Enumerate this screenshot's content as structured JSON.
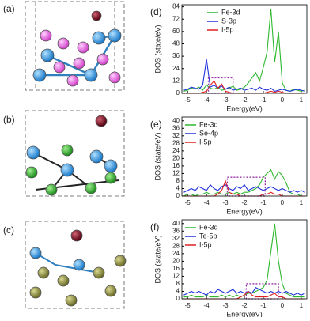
{
  "structures": [
    {
      "label": "(a)"
    },
    {
      "label": "(b)"
    },
    {
      "label": "(c)"
    }
  ],
  "chart_data": [
    {
      "type": "line",
      "label": "(d)",
      "x_label": "Energy(eV)",
      "y_label": "DOS (state/eV)",
      "x": [
        -5.2,
        -5.0,
        -4.8,
        -4.6,
        -4.4,
        -4.2,
        -4.0,
        -3.8,
        -3.6,
        -3.4,
        -3.2,
        -3.0,
        -2.8,
        -2.6,
        -2.4,
        -2.2,
        -2.0,
        -1.8,
        -1.6,
        -1.4,
        -1.2,
        -1.0,
        -0.8,
        -0.6,
        -0.4,
        -0.2,
        0,
        0.2,
        0.4,
        0.6,
        0.8,
        1.0,
        1.2
      ],
      "xlim": [
        -5.3,
        1.3
      ],
      "xticks": [
        -5,
        -4,
        -3,
        -2,
        -1,
        0,
        1
      ],
      "ylim": [
        0,
        86
      ],
      "yticks": [
        0,
        12,
        24,
        36,
        48,
        60,
        72,
        84
      ],
      "series": [
        {
          "name": "Fe-3d",
          "color": "#2eb82e",
          "values": [
            2,
            3,
            5,
            4,
            6,
            3,
            8,
            5,
            4,
            6,
            3,
            4,
            5,
            7,
            3,
            4,
            6,
            10,
            15,
            20,
            12,
            25,
            40,
            82,
            30,
            60,
            10,
            3,
            2,
            4,
            3,
            2,
            3
          ]
        },
        {
          "name": "S-3p",
          "color": "#2233dd",
          "values": [
            3,
            4,
            6,
            5,
            4,
            8,
            33,
            6,
            8,
            5,
            7,
            4,
            6,
            3,
            4,
            5,
            3,
            4,
            5,
            3,
            6,
            4,
            3,
            5,
            2,
            3,
            4,
            3,
            2,
            3,
            4,
            3,
            2
          ]
        },
        {
          "name": "I-5p",
          "color": "#e02020",
          "values": [
            0,
            0,
            0,
            0,
            0,
            1,
            2,
            8,
            12,
            5,
            9,
            2,
            1,
            0,
            0,
            0,
            0,
            0,
            0,
            0,
            0,
            0,
            1,
            2,
            1,
            2,
            1,
            0,
            0,
            0,
            0,
            0,
            0
          ]
        }
      ],
      "highlight_box": {
        "x": [
          -3.9,
          -2.6
        ],
        "y": [
          0,
          15
        ]
      }
    },
    {
      "type": "line",
      "label": "(e)",
      "x_label": "Energy(eV)",
      "y_label": "DOS (state/eV)",
      "x": [
        -5.2,
        -5.0,
        -4.8,
        -4.6,
        -4.4,
        -4.2,
        -4.0,
        -3.8,
        -3.6,
        -3.4,
        -3.2,
        -3.0,
        -2.8,
        -2.6,
        -2.4,
        -2.2,
        -2.0,
        -1.8,
        -1.6,
        -1.4,
        -1.2,
        -1.0,
        -0.8,
        -0.6,
        -0.4,
        -0.2,
        0,
        0.2,
        0.4,
        0.6,
        0.8,
        1.0,
        1.2
      ],
      "xlim": [
        -5.3,
        1.3
      ],
      "xticks": [
        -5,
        -4,
        -3,
        -2,
        -1,
        0,
        1
      ],
      "ylim": [
        0,
        42
      ],
      "yticks": [
        0,
        4,
        8,
        12,
        16,
        20,
        24,
        28,
        32,
        36,
        40
      ],
      "series": [
        {
          "name": "Fe-3d",
          "color": "#2eb82e",
          "values": [
            0,
            1,
            1,
            0,
            1,
            1,
            2,
            1,
            1,
            2,
            1,
            1,
            2,
            1,
            2,
            1,
            2,
            2,
            3,
            4,
            6,
            10,
            12,
            14,
            9,
            13,
            11,
            7,
            2,
            1,
            1,
            0,
            0
          ]
        },
        {
          "name": "Se-4p",
          "color": "#2233dd",
          "values": [
            2,
            3,
            4,
            3,
            5,
            4,
            3,
            6,
            4,
            3,
            5,
            6,
            4,
            3,
            5,
            4,
            6,
            3,
            4,
            5,
            4,
            3,
            4,
            5,
            4,
            3,
            4,
            3,
            2,
            3,
            2,
            3,
            2
          ]
        },
        {
          "name": "I-5p",
          "color": "#e02020",
          "values": [
            0,
            0,
            0,
            0,
            0,
            0,
            0,
            0,
            0,
            1,
            3,
            8,
            2,
            1,
            1,
            0,
            0,
            0,
            0,
            0,
            0,
            1,
            1,
            2,
            1,
            1,
            0,
            0,
            0,
            0,
            0,
            0,
            0
          ]
        }
      ],
      "highlight_box": {
        "x": [
          -2.9,
          -0.9
        ],
        "y": [
          0,
          10
        ]
      }
    },
    {
      "type": "line",
      "label": "(f)",
      "x_label": "Energy(eV)",
      "y_label": "DOS (state/eV)",
      "x": [
        -5.2,
        -5.0,
        -4.8,
        -4.6,
        -4.4,
        -4.2,
        -4.0,
        -3.8,
        -3.6,
        -3.4,
        -3.2,
        -3.0,
        -2.8,
        -2.6,
        -2.4,
        -2.2,
        -2.0,
        -1.8,
        -1.6,
        -1.4,
        -1.2,
        -1.0,
        -0.8,
        -0.6,
        -0.4,
        -0.2,
        0,
        0.2,
        0.4,
        0.6,
        0.8,
        1.0,
        1.2
      ],
      "xlim": [
        -5.3,
        1.3
      ],
      "xticks": [
        -5,
        -4,
        -3,
        -2,
        -1,
        0,
        1
      ],
      "ylim": [
        0,
        42
      ],
      "yticks": [
        0,
        4,
        8,
        12,
        16,
        20,
        24,
        28,
        32,
        36,
        40
      ],
      "series": [
        {
          "name": "Fe-3d",
          "color": "#2eb82e",
          "values": [
            1,
            1,
            2,
            1,
            1,
            1,
            2,
            1,
            1,
            1,
            2,
            1,
            2,
            1,
            2,
            1,
            2,
            3,
            3,
            4,
            5,
            6,
            10,
            25,
            40,
            20,
            8,
            3,
            2,
            1,
            1,
            1,
            1
          ]
        },
        {
          "name": "Te-5p",
          "color": "#2233dd",
          "values": [
            2,
            3,
            4,
            3,
            4,
            3,
            2,
            4,
            3,
            5,
            4,
            3,
            4,
            5,
            3,
            4,
            3,
            4,
            3,
            6,
            5,
            4,
            3,
            4,
            3,
            4,
            3,
            4,
            3,
            2,
            3,
            2,
            3
          ]
        },
        {
          "name": "I-5p",
          "color": "#e02020",
          "values": [
            0,
            0,
            0,
            0,
            0,
            0,
            0,
            0,
            0,
            0,
            0,
            0,
            0,
            0,
            0,
            1,
            2,
            4,
            2,
            1,
            1,
            1,
            1,
            2,
            3,
            1,
            1,
            0,
            0,
            0,
            0,
            0,
            0
          ]
        }
      ],
      "highlight_box": {
        "x": [
          -1.9,
          -0.2
        ],
        "y": [
          0,
          8
        ]
      }
    }
  ]
}
